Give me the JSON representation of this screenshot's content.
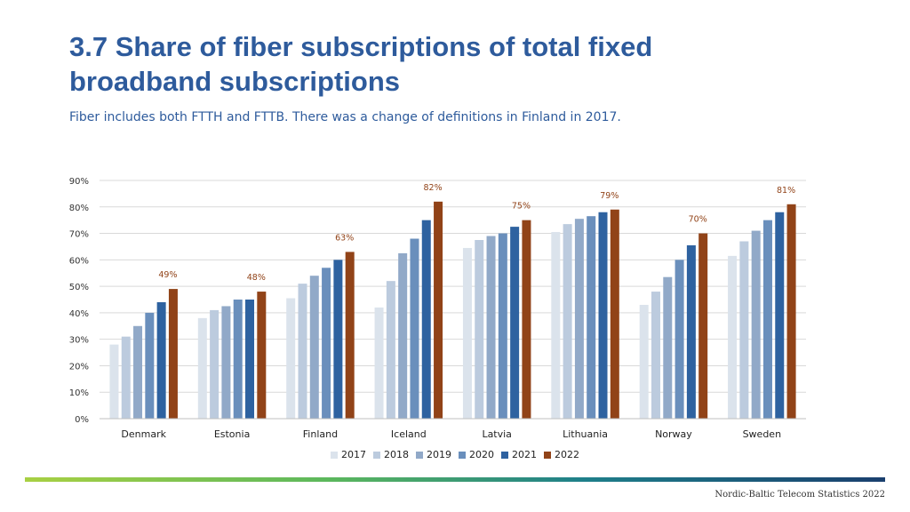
{
  "title": "3.7 Share of fiber subscriptions of total fixed broadband subscriptions",
  "subtitle": "Fiber includes both FTTH and FTTB. There was a change of definitions in Finland in 2017.",
  "footer": "Nordic-Baltic Telecom Statistics 2022",
  "chart_data": {
    "type": "bar",
    "categories": [
      "Denmark",
      "Estonia",
      "Finland",
      "Iceland",
      "Latvia",
      "Lithuania",
      "Norway",
      "Sweden"
    ],
    "series": [
      {
        "name": "2017",
        "color": "#dbe3ec",
        "values": [
          28,
          38,
          45.5,
          42,
          64.5,
          70.5,
          43,
          61.5
        ]
      },
      {
        "name": "2018",
        "color": "#bccbde",
        "values": [
          31,
          41,
          51,
          52,
          67.5,
          73.5,
          48,
          67
        ]
      },
      {
        "name": "2019",
        "color": "#91a9c8",
        "values": [
          35,
          42.5,
          54,
          62.5,
          69,
          75.5,
          53.5,
          71
        ]
      },
      {
        "name": "2020",
        "color": "#6a8fbc",
        "values": [
          40,
          45,
          57,
          68,
          70,
          76.5,
          60,
          75
        ]
      },
      {
        "name": "2021",
        "color": "#2e62a0",
        "values": [
          44,
          45,
          60,
          75,
          72.5,
          78,
          65.5,
          78
        ]
      },
      {
        "name": "2022",
        "color": "#914318",
        "values": [
          49,
          48,
          63,
          82,
          75,
          79,
          70,
          81
        ]
      }
    ],
    "data_labels": [
      "49%",
      "48%",
      "63%",
      "82%",
      "75%",
      "79%",
      "70%",
      "81%"
    ],
    "y_ticks": [
      "0%",
      "10%",
      "20%",
      "30%",
      "40%",
      "50%",
      "60%",
      "70%",
      "80%",
      "90%"
    ],
    "ylim": [
      0,
      90
    ],
    "grid": true,
    "legend_position": "bottom",
    "label_color": "#914318"
  }
}
